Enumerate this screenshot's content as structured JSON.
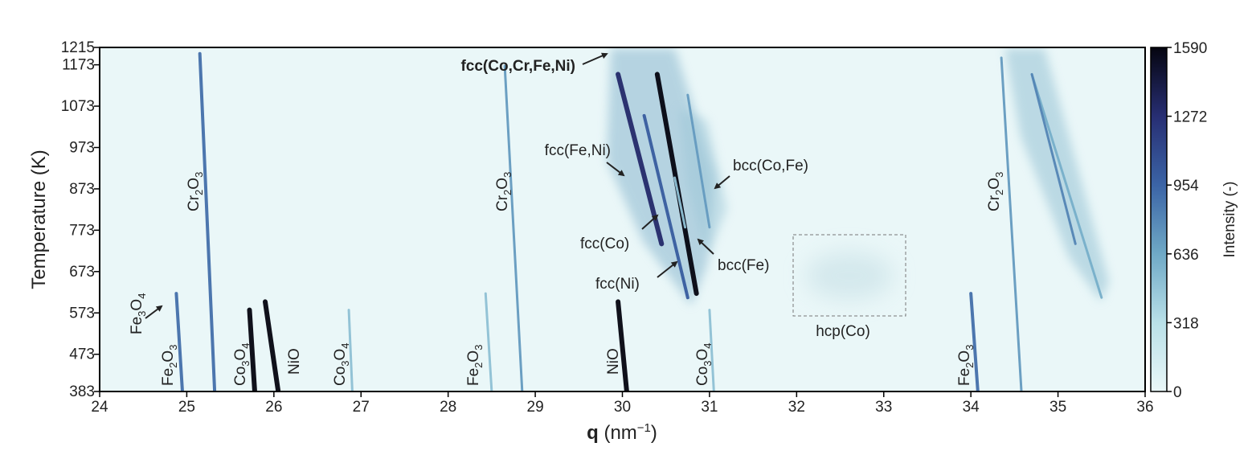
{
  "chart_data": {
    "type": "heatmap",
    "xlabel_bold": "q",
    "xlabel_rest": " (nm",
    "xlabel_exp": "−1",
    "xlabel_close": ")",
    "ylabel": "Temperature (K)",
    "xlim": [
      24,
      36
    ],
    "ylim": [
      383,
      1215
    ],
    "x_ticks": [
      "24",
      "25",
      "26",
      "27",
      "28",
      "29",
      "30",
      "31",
      "32",
      "33",
      "34",
      "35",
      "36"
    ],
    "y_ticks": [
      "383",
      "473",
      "573",
      "673",
      "773",
      "873",
      "973",
      "1073",
      "1173",
      "1215"
    ],
    "colorbar": {
      "label": "Intensity (-)",
      "range": [
        0,
        1590
      ],
      "ticks": [
        "0",
        "318",
        "636",
        "954",
        "1272",
        "1590"
      ],
      "colors": [
        "#eaf7f8",
        "#b9e0e8",
        "#6fa9c6",
        "#3b64a6",
        "#272e73",
        "#050510"
      ]
    },
    "traces": [
      {
        "q0": 25.32,
        "T0": 383,
        "q1": 25.15,
        "T1": 1200,
        "intensity": 900
      },
      {
        "q0": 28.85,
        "T0": 383,
        "q1": 28.65,
        "T1": 1170,
        "intensity": 700
      },
      {
        "q0": 34.58,
        "T0": 383,
        "q1": 34.35,
        "T1": 1190,
        "intensity": 700
      },
      {
        "q0": 24.95,
        "T0": 383,
        "q1": 24.88,
        "T1": 620,
        "intensity": 900
      },
      {
        "q0": 25.78,
        "T0": 383,
        "q1": 25.72,
        "T1": 580,
        "intensity": 1590
      },
      {
        "q0": 26.05,
        "T0": 383,
        "q1": 25.9,
        "T1": 600,
        "intensity": 1590
      },
      {
        "q0": 26.9,
        "T0": 383,
        "q1": 26.86,
        "T1": 580,
        "intensity": 500
      },
      {
        "q0": 28.5,
        "T0": 383,
        "q1": 28.43,
        "T1": 620,
        "intensity": 500
      },
      {
        "q0": 30.05,
        "T0": 383,
        "q1": 29.95,
        "T1": 600,
        "intensity": 1590
      },
      {
        "q0": 31.05,
        "T0": 383,
        "q1": 31.0,
        "T1": 580,
        "intensity": 500
      },
      {
        "q0": 34.08,
        "T0": 383,
        "q1": 34.0,
        "T1": 620,
        "intensity": 900
      },
      {
        "q0": 30.85,
        "T0": 620,
        "q1": 30.4,
        "T1": 1150,
        "intensity": 1590
      },
      {
        "q0": 30.45,
        "T0": 740,
        "q1": 29.95,
        "T1": 1150,
        "intensity": 1300
      },
      {
        "q0": 30.75,
        "T0": 610,
        "q1": 30.25,
        "T1": 1050,
        "intensity": 1000
      },
      {
        "q0": 30.72,
        "T0": 780,
        "q1": 30.6,
        "T1": 900,
        "intensity": 500
      },
      {
        "q0": 31.0,
        "T0": 780,
        "q1": 30.75,
        "T1": 1100,
        "intensity": 700
      },
      {
        "q0": 35.5,
        "T0": 610,
        "q1": 34.7,
        "T1": 1150,
        "intensity": 600
      },
      {
        "q0": 35.2,
        "T0": 740,
        "q1": 34.7,
        "T1": 1150,
        "intensity": 800
      }
    ],
    "annotations": [
      {
        "id": "fcc-cocrfeni",
        "text": "fcc(Co,Cr,Fe,Ni)",
        "bold": true
      },
      {
        "id": "fcc-feni",
        "text": "fcc(Fe,Ni)"
      },
      {
        "id": "bcc-cofe",
        "text": "bcc(Co,Fe)"
      },
      {
        "id": "fcc-co",
        "text": "fcc(Co)"
      },
      {
        "id": "bcc-fe",
        "text": "bcc(Fe)"
      },
      {
        "id": "fcc-ni",
        "text": "fcc(Ni)"
      },
      {
        "id": "hcp-co",
        "text": "hcp(Co)"
      }
    ],
    "phase_labels": [
      {
        "id": "cr2o3-1",
        "base": "Cr",
        "s1": "2",
        "mid": "O",
        "s2": "3"
      },
      {
        "id": "cr2o3-2",
        "base": "Cr",
        "s1": "2",
        "mid": "O",
        "s2": "3"
      },
      {
        "id": "cr2o3-3",
        "base": "Cr",
        "s1": "2",
        "mid": "O",
        "s2": "3"
      },
      {
        "id": "fe3o4",
        "base": "Fe",
        "s1": "3",
        "mid": "O",
        "s2": "4"
      },
      {
        "id": "fe2o3-1",
        "base": "Fe",
        "s1": "2",
        "mid": "O",
        "s2": "3"
      },
      {
        "id": "fe2o3-2",
        "base": "Fe",
        "s1": "2",
        "mid": "O",
        "s2": "3"
      },
      {
        "id": "fe2o3-3",
        "base": "Fe",
        "s1": "2",
        "mid": "O",
        "s2": "3"
      },
      {
        "id": "co3o4-1",
        "base": "Co",
        "s1": "3",
        "mid": "O",
        "s2": "4"
      },
      {
        "id": "co3o4-2",
        "base": "Co",
        "s1": "3",
        "mid": "O",
        "s2": "4"
      },
      {
        "id": "co3o4-3",
        "base": "Co",
        "s1": "3",
        "mid": "O",
        "s2": "4"
      },
      {
        "id": "nio-1",
        "base": "NiO",
        "s1": "",
        "mid": "",
        "s2": ""
      },
      {
        "id": "nio-2",
        "base": "NiO",
        "s1": "",
        "mid": "",
        "s2": ""
      }
    ]
  }
}
